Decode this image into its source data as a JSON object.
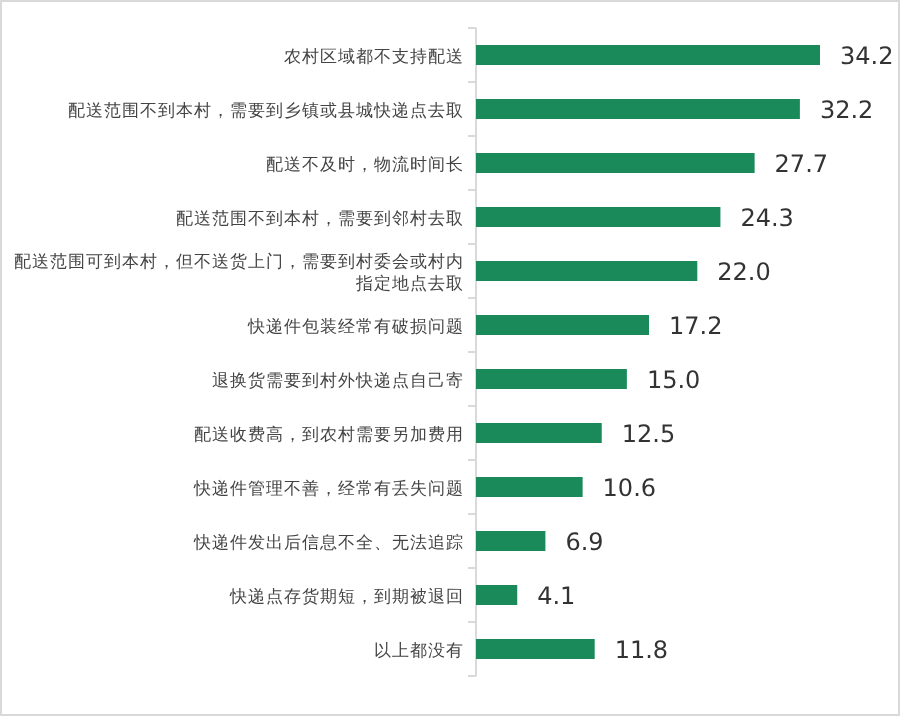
{
  "chart_data": {
    "type": "bar",
    "orientation": "horizontal",
    "color": "#1a8a5a",
    "value_labels": [
      "34.2",
      "32.2",
      "27.7",
      "24.3",
      "22.0",
      "17.2",
      "15.0",
      "12.5",
      "10.6",
      "6.9",
      "4.1",
      "11.8"
    ],
    "categories": [
      "农村区域都不支持配送",
      "配送范围不到本村，需要到乡镇或县城快递点去取",
      "配送不及时，物流时间长",
      "配送范围不到本村，需要到邻村去取",
      "配送范围可到本村，但不送货上门，需要到村委会或村内指定地点去取",
      "快递件包装经常有破损问题",
      "退换货需要到村外快递点自己寄",
      "配送收费高，到农村需要另加费用",
      "快递件管理不善，经常有丢失问题",
      "快递件发出后信息不全、无法追踪",
      "快递点存货期短，到期被退回",
      "以上都没有"
    ],
    "values": [
      34.2,
      32.2,
      27.7,
      24.3,
      22.0,
      17.2,
      15.0,
      12.5,
      10.6,
      6.9,
      4.1,
      11.8
    ]
  }
}
